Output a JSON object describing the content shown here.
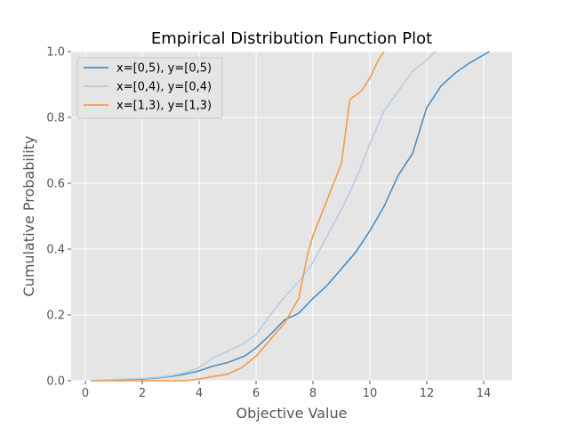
{
  "chart_data": {
    "type": "line",
    "title": "Empirical Distribution Function Plot",
    "xlabel": "Objective Value",
    "ylabel": "Cumulative Probability",
    "xlim": [
      -0.5,
      15
    ],
    "ylim": [
      0,
      1
    ],
    "xticks": [
      0,
      2,
      4,
      6,
      8,
      10,
      12,
      14
    ],
    "yticks": [
      0.0,
      0.2,
      0.4,
      0.6,
      0.8,
      1.0
    ],
    "ytick_labels": [
      "0.0",
      "0.2",
      "0.4",
      "0.6",
      "0.8",
      "1.0"
    ],
    "grid": true,
    "legend_position": "upper-left",
    "background": "#e5e5e5",
    "series": [
      {
        "name": "x=[0,5), y=[0,5)",
        "color": "#4c8fc4",
        "x": [
          0.2,
          1.0,
          2.0,
          2.5,
          3.0,
          3.5,
          4.0,
          4.5,
          5.0,
          5.3,
          5.6,
          6.0,
          6.5,
          7.0,
          7.5,
          8.0,
          8.5,
          9.0,
          9.5,
          10.0,
          10.5,
          11.0,
          11.5,
          12.0,
          12.5,
          13.0,
          13.5,
          14.0,
          14.2
        ],
        "y": [
          0.0,
          0.003,
          0.005,
          0.008,
          0.013,
          0.02,
          0.03,
          0.045,
          0.055,
          0.065,
          0.075,
          0.1,
          0.14,
          0.185,
          0.205,
          0.25,
          0.29,
          0.34,
          0.39,
          0.455,
          0.53,
          0.625,
          0.69,
          0.83,
          0.895,
          0.935,
          0.965,
          0.99,
          1.0
        ]
      },
      {
        "name": "x=[0,4), y=[0,4)",
        "color": "#b8cde6",
        "x": [
          0.2,
          1.0,
          2.0,
          2.5,
          3.0,
          3.5,
          4.0,
          4.5,
          5.0,
          5.5,
          6.0,
          6.5,
          7.0,
          7.5,
          8.0,
          8.5,
          9.0,
          9.5,
          10.0,
          10.5,
          11.0,
          11.5,
          12.0,
          12.3
        ],
        "y": [
          0.0,
          0.004,
          0.007,
          0.01,
          0.015,
          0.025,
          0.04,
          0.07,
          0.09,
          0.11,
          0.14,
          0.2,
          0.255,
          0.3,
          0.36,
          0.44,
          0.52,
          0.61,
          0.72,
          0.82,
          0.88,
          0.94,
          0.975,
          1.0
        ]
      },
      {
        "name": "x=[1,3), y=[1,3)",
        "color": "#f39c47",
        "x": [
          0.2,
          3.5,
          4.0,
          4.5,
          5.0,
          5.5,
          6.0,
          6.5,
          7.0,
          7.5,
          7.8,
          8.0,
          8.5,
          9.0,
          9.3,
          9.7,
          10.0,
          10.3,
          10.5
        ],
        "y": [
          0.0,
          0.0,
          0.005,
          0.013,
          0.02,
          0.04,
          0.075,
          0.125,
          0.175,
          0.25,
          0.38,
          0.44,
          0.55,
          0.66,
          0.855,
          0.88,
          0.92,
          0.975,
          1.0
        ]
      }
    ]
  }
}
